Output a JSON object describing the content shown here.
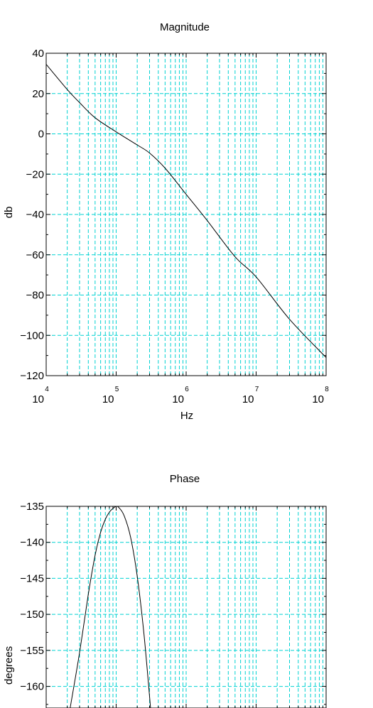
{
  "colors": {
    "grid": "#00d2d2",
    "curve": "#000000",
    "axis": "#000000",
    "background": "#ffffff"
  },
  "chart_data": [
    {
      "type": "line",
      "title": "Magnitude",
      "xlabel": "Hz",
      "ylabel": "db",
      "xscale": "log",
      "xlim": [
        10000,
        100000000
      ],
      "ylim": [
        -120,
        40
      ],
      "x_tick_labels": [
        {
          "base": "10",
          "exp": "4"
        },
        {
          "base": "10",
          "exp": "5"
        },
        {
          "base": "10",
          "exp": "6"
        },
        {
          "base": "10",
          "exp": "7"
        },
        {
          "base": "10",
          "exp": "8"
        }
      ],
      "y_tick_labels": [
        "40",
        "20",
        "0",
        "−20",
        "−40",
        "−60",
        "−80",
        "−100",
        "−120"
      ],
      "y_ticks": [
        40,
        20,
        0,
        -20,
        -40,
        -60,
        -80,
        -100,
        -120
      ],
      "grid": true,
      "series": [
        {
          "x": [
            10000,
            20000,
            30000,
            50000,
            100000,
            200000,
            300000,
            500000,
            1000000,
            2000000,
            5000000,
            10000000,
            30000000,
            100000000
          ],
          "y": [
            34.5,
            22,
            15.5,
            8,
            1,
            -5.5,
            -9.5,
            -17,
            -30,
            -43,
            -61,
            -71,
            -92,
            -111
          ]
        }
      ]
    },
    {
      "type": "line",
      "title": "Phase",
      "xlabel": "",
      "ylabel": "degrees",
      "xscale": "log",
      "xlim": [
        10000,
        100000000
      ],
      "ylim": [
        -163,
        -135
      ],
      "y_tick_labels": [
        "−135",
        "−140",
        "−145",
        "−150",
        "−155",
        "−160"
      ],
      "y_ticks": [
        -135,
        -140,
        -145,
        -150,
        -155,
        -160
      ],
      "grid": true,
      "series": [
        {
          "x": [
            22000,
            30000,
            40000,
            50000,
            60000,
            70000,
            80000,
            90000,
            100000,
            110000,
            130000,
            160000,
            200000,
            250000,
            310000
          ],
          "y": [
            -163,
            -155.3,
            -147.2,
            -141.8,
            -138.6,
            -136.8,
            -135.8,
            -135.3,
            -135,
            -135.2,
            -136.3,
            -139.2,
            -144.7,
            -152.8,
            -163
          ]
        }
      ]
    }
  ]
}
